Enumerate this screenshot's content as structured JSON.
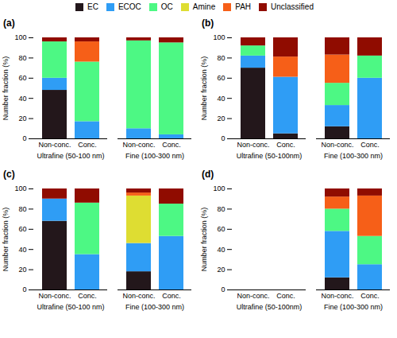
{
  "chart_data": [
    {
      "type": "bar",
      "stacked": true,
      "title": "(a)",
      "ylabel": "Number fraction (%)",
      "categories": [
        "Non-conc.",
        "Conc.",
        "Non-conc.",
        "Conc."
      ],
      "annotations": [
        "Ultrafine (50-100 nm)",
        "Fine (100-300 nm)"
      ],
      "series": [
        {
          "name": "EC",
          "values": [
            48,
            0,
            0,
            0
          ]
        },
        {
          "name": "ECOC",
          "values": [
            12,
            17,
            10,
            4
          ]
        },
        {
          "name": "OC",
          "values": [
            36,
            59,
            87,
            91
          ]
        },
        {
          "name": "Amine",
          "values": [
            0,
            0,
            0,
            0
          ]
        },
        {
          "name": "PAH",
          "values": [
            0,
            20,
            0,
            0
          ]
        },
        {
          "name": "Unclassified",
          "values": [
            4,
            4,
            3,
            5
          ]
        }
      ],
      "ylim": [
        0,
        100
      ],
      "yticks": [
        0,
        20,
        40,
        60,
        80,
        100
      ],
      "legend": "top"
    },
    {
      "type": "bar",
      "stacked": true,
      "title": "(b)",
      "ylabel": "Number fraction (%)",
      "categories": [
        "Non-conc.",
        "Conc.",
        "Non-conc.",
        "Conc."
      ],
      "annotations": [
        "Ultrafine (50-100nm)",
        "Fine (100-300 nm)"
      ],
      "series": [
        {
          "name": "EC",
          "values": [
            70,
            5,
            12,
            0
          ]
        },
        {
          "name": "ECOC",
          "values": [
            12,
            56,
            21,
            60
          ]
        },
        {
          "name": "OC",
          "values": [
            10,
            0,
            22,
            22
          ]
        },
        {
          "name": "Amine",
          "values": [
            0,
            0,
            0,
            0
          ]
        },
        {
          "name": "PAH",
          "values": [
            0,
            20,
            28,
            0
          ]
        },
        {
          "name": "Unclassified",
          "values": [
            8,
            19,
            17,
            18
          ]
        }
      ],
      "ylim": [
        0,
        100
      ],
      "yticks": [
        0,
        20,
        40,
        60,
        80,
        100
      ],
      "legend": "top"
    },
    {
      "type": "bar",
      "stacked": true,
      "title": "(c)",
      "ylabel": "Number fraction (%)",
      "categories": [
        "Non-conc.",
        "Conc.",
        "Non-conc.",
        "Conc."
      ],
      "annotations": [
        "Ultrafine (50-100 nm)",
        "Fine (100-300 nm)"
      ],
      "series": [
        {
          "name": "EC",
          "values": [
            68,
            0,
            18,
            0
          ]
        },
        {
          "name": "ECOC",
          "values": [
            22,
            35,
            28,
            53
          ]
        },
        {
          "name": "OC",
          "values": [
            0,
            51,
            0,
            32
          ]
        },
        {
          "name": "Amine",
          "values": [
            0,
            0,
            47,
            0
          ]
        },
        {
          "name": "PAH",
          "values": [
            0,
            0,
            3,
            0
          ]
        },
        {
          "name": "Unclassified",
          "values": [
            10,
            14,
            4,
            15
          ]
        }
      ],
      "ylim": [
        0,
        100
      ],
      "yticks": [
        0,
        20,
        40,
        60,
        80,
        100
      ],
      "legend": "top"
    },
    {
      "type": "bar",
      "stacked": true,
      "title": "(d)",
      "ylabel": "Number fraction (%)",
      "categories": [
        "Non-conc.",
        "Conc.",
        "Non-conc.",
        "Conc."
      ],
      "annotations": [
        "Ultrafine (50-100nm)",
        "Fine (100-300 nm)"
      ],
      "series": [
        {
          "name": "EC",
          "values": [
            0,
            0,
            12,
            0
          ]
        },
        {
          "name": "ECOC",
          "values": [
            0,
            0,
            46,
            25
          ]
        },
        {
          "name": "OC",
          "values": [
            0,
            0,
            22,
            28
          ]
        },
        {
          "name": "Amine",
          "values": [
            0,
            0,
            0,
            0
          ]
        },
        {
          "name": "PAH",
          "values": [
            0,
            0,
            12,
            40
          ]
        },
        {
          "name": "Unclassified",
          "values": [
            0,
            0,
            8,
            7
          ]
        }
      ],
      "ylim": [
        0,
        100
      ],
      "yticks": [
        0,
        20,
        40,
        60,
        80,
        100
      ],
      "legend": "top"
    }
  ]
}
